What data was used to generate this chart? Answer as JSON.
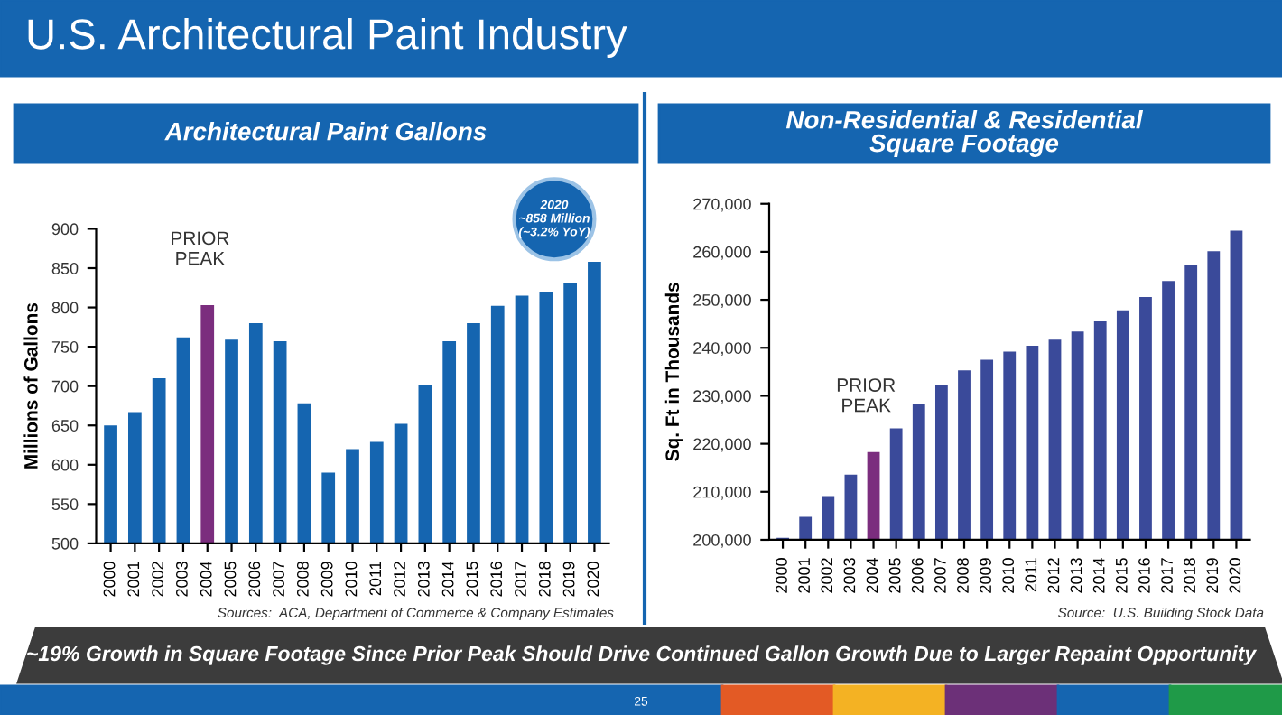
{
  "chart_data": [
    {
      "type": "bar",
      "title": "Architectural Paint Gallons",
      "ylabel": "Millions of Gallons",
      "categories": [
        "2000",
        "2001",
        "2002",
        "2003",
        "2004",
        "2005",
        "2006",
        "2007",
        "2008",
        "2009",
        "2010",
        "2011",
        "2012",
        "2013",
        "2014",
        "2015",
        "2016",
        "2017",
        "2018",
        "2019",
        "2020"
      ],
      "values": [
        650,
        667,
        710,
        762,
        803,
        759,
        780,
        757,
        678,
        590,
        620,
        629,
        652,
        701,
        757,
        780,
        802,
        815,
        819,
        831,
        858
      ],
      "colors": [
        "#1565b0",
        "#1565b0",
        "#1565b0",
        "#1565b0",
        "#7b2d7e",
        "#1565b0",
        "#1565b0",
        "#1565b0",
        "#1565b0",
        "#1565b0",
        "#1565b0",
        "#1565b0",
        "#1565b0",
        "#1565b0",
        "#1565b0",
        "#1565b0",
        "#1565b0",
        "#1565b0",
        "#1565b0",
        "#1565b0",
        "#1565b0"
      ],
      "ylim": [
        500,
        900
      ],
      "yticks": [
        500,
        550,
        600,
        650,
        700,
        750,
        800,
        850,
        900
      ],
      "grid": false,
      "legend": false,
      "annotations": [
        {
          "text": "PRIOR\nPEAK",
          "x": "2004",
          "y": 803
        },
        {
          "text": "2020\n~858 Million\n(~3.2% YoY)",
          "x": "2020",
          "y": 858
        },
        "Sources:  ACA, Department of Commerce & Company Estimates",
        "U.S. Architectural Paint Industry",
        "~19% Growth in Square Footage Since Prior Peak Should Drive Continued Gallon Growth Due to Larger Repaint Opportunity",
        "25"
      ]
    },
    {
      "type": "bar",
      "title": "Non-Residential & Residential\nSquare Footage",
      "ylabel": "Sq. Ft in Thousands",
      "categories": [
        "2000",
        "2001",
        "2002",
        "2003",
        "2004",
        "2005",
        "2006",
        "2007",
        "2008",
        "2009",
        "2010",
        "2011",
        "2012",
        "2013",
        "2014",
        "2015",
        "2016",
        "2017",
        "2018",
        "2019",
        "2020"
      ],
      "values": [
        200400,
        204800,
        209100,
        213600,
        218300,
        223200,
        228300,
        232300,
        235300,
        237500,
        239200,
        240400,
        241700,
        243400,
        245500,
        247800,
        250600,
        253900,
        257200,
        260100,
        264400
      ],
      "colors": [
        "#3a4a9a",
        "#3a4a9a",
        "#3a4a9a",
        "#3a4a9a",
        "#7b2d7e",
        "#3a4a9a",
        "#3a4a9a",
        "#3a4a9a",
        "#3a4a9a",
        "#3a4a9a",
        "#3a4a9a",
        "#3a4a9a",
        "#3a4a9a",
        "#3a4a9a",
        "#3a4a9a",
        "#3a4a9a",
        "#3a4a9a",
        "#3a4a9a",
        "#3a4a9a",
        "#3a4a9a",
        "#3a4a9a"
      ],
      "ylim": [
        200000,
        270000
      ],
      "yticks": [
        {
          "value": 200000,
          "label": "200,000"
        },
        {
          "value": 210000,
          "label": "210,000"
        },
        {
          "value": 220000,
          "label": "220,000"
        },
        {
          "value": 230000,
          "label": "230,000"
        },
        {
          "value": 240000,
          "label": "240,000"
        },
        {
          "value": 250000,
          "label": "250,000"
        },
        {
          "value": 260000,
          "label": "260,000"
        },
        {
          "value": 270000,
          "label": "270,000"
        }
      ],
      "grid": false,
      "legend": false,
      "annotations": [
        {
          "text": "PRIOR\nPEAK",
          "x": "2004",
          "y": 218300
        },
        "Source:  U.S. Building Stock Data"
      ]
    }
  ]
}
